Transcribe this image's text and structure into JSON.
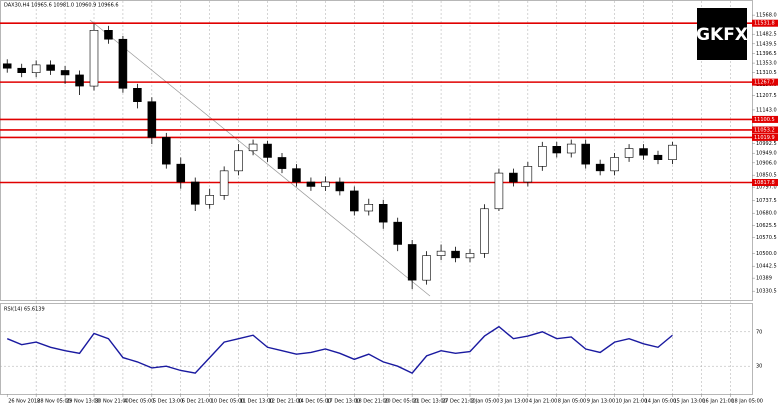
{
  "logo": "GKFX",
  "chart_data": [
    {
      "type": "candlestick",
      "title": "DAX30,H4 10965.6 10981.0 10960.9 10966.6",
      "categories": [
        "26 Nov 2018",
        null,
        "28 Nov 05:00",
        null,
        "29 Nov 13:00",
        null,
        "30 Nov 21:00",
        null,
        "4 Dec 05:00",
        null,
        "5 Dec 13:00",
        null,
        "6 Dec 21:00",
        null,
        "10 Dec 05:00",
        null,
        "11 Dec 13:00",
        null,
        "12 Dec 21:00",
        null,
        "14 Dec 05:00",
        null,
        "17 Dec 13:00",
        null,
        "18 Dec 21:00",
        null,
        "20 Dec 05:00",
        null,
        "21 Dec 13:00",
        null,
        "27 Dec 21:00",
        null,
        "2 Jan 05:00",
        null,
        "3 Jan 13:00",
        null,
        "4 Jan 21:00",
        null,
        "8 Jan 05:00",
        null,
        "9 Jan 13:00",
        null,
        "10 Jan 21:00",
        null,
        "14 Jan 05:00",
        null,
        "15 Jan 13:00",
        null,
        "16 Jan 21:00",
        null,
        "18 Jan 05:00",
        null
      ],
      "open": [
        11350,
        11330,
        11310,
        11345,
        11320,
        11300,
        11250,
        11500,
        11460,
        11240,
        11180,
        11020,
        10900,
        10820,
        10720,
        10760,
        10870,
        10960,
        10990,
        10930,
        10880,
        10820,
        10800,
        10820,
        10780,
        10690,
        10720,
        10640,
        10540,
        10380,
        10490,
        10510,
        10480,
        10500,
        10700,
        10860,
        10820,
        10890,
        10980,
        10950,
        10990,
        10900,
        10870,
        10930,
        10970,
        10940,
        10920,
        null,
        null,
        null,
        null,
        null
      ],
      "high": [
        11370,
        11350,
        11365,
        11365,
        11340,
        11320,
        11530,
        11520,
        11475,
        11260,
        11200,
        11040,
        10930,
        10840,
        10790,
        10890,
        10990,
        11010,
        11005,
        10950,
        10900,
        10840,
        10845,
        10840,
        10800,
        10745,
        10740,
        10660,
        10560,
        10510,
        10540,
        10530,
        10520,
        10720,
        10880,
        10880,
        10910,
        11000,
        11000,
        11010,
        11010,
        10920,
        10950,
        10990,
        10990,
        10960,
        11000,
        null,
        null,
        null,
        null,
        null
      ],
      "low": [
        11310,
        11290,
        11290,
        11300,
        11260,
        11210,
        11230,
        11440,
        11220,
        11150,
        10990,
        10880,
        10790,
        10690,
        10700,
        10740,
        10850,
        10940,
        10910,
        10860,
        10800,
        10780,
        10780,
        10760,
        10670,
        10670,
        10610,
        10510,
        10340,
        10360,
        10470,
        10460,
        10460,
        10480,
        10690,
        10800,
        10800,
        10870,
        10930,
        10930,
        10880,
        10850,
        10850,
        10910,
        10920,
        10900,
        10900,
        null,
        null,
        null,
        null,
        null
      ],
      "close": [
        11330,
        11310,
        11345,
        11320,
        11300,
        11250,
        11500,
        11460,
        11240,
        11180,
        11020,
        10900,
        10820,
        10720,
        10760,
        10870,
        10960,
        10990,
        10930,
        10880,
        10820,
        10800,
        10820,
        10780,
        10690,
        10720,
        10640,
        10540,
        10380,
        10490,
        10510,
        10480,
        10500,
        10700,
        10860,
        10820,
        10890,
        10980,
        10950,
        10990,
        10900,
        10870,
        10930,
        10970,
        10940,
        10920,
        10985,
        null,
        null,
        null,
        null,
        null
      ],
      "up_color": "#ffffff",
      "down_color": "#000000",
      "ylim": [
        10300,
        11600
      ],
      "yticks": [
        10330.5,
        10389.0,
        10442.5,
        {
          "value": 10500,
          "label": "10500.0"
        },
        10570.5,
        10625.5,
        {
          "value": 10680,
          "label": "10680.0"
        },
        10737.5,
        {
          "value": 10797,
          "label": "10797.0"
        },
        10850.5,
        {
          "value": 10906,
          "label": "10906.0"
        },
        {
          "value": 10949,
          "label": "10949.0"
        },
        10992.5,
        {
          "value": 11046,
          "label": "11046.0"
        },
        {
          "value": 11100,
          "label": "11100.0"
        },
        {
          "value": 11143,
          "label": "11143.0"
        },
        11207.5,
        {
          "value": 11256,
          "label": "11256.0"
        },
        11310.5,
        {
          "value": 11353,
          "label": "11353.0"
        },
        11396.5,
        11439.5,
        11482.5,
        11525.5,
        {
          "value": 11568,
          "label": "11568.0"
        }
      ],
      "levels": [
        11531.8,
        11267.7,
        11100.5,
        11053.2,
        11019.9,
        10817.8
      ],
      "level_color": "#e00000",
      "grid": true
    },
    {
      "type": "line",
      "title": "RSI(14) 65.6139",
      "values": [
        62,
        55,
        58,
        52,
        48,
        45,
        68,
        62,
        40,
        35,
        28,
        30,
        25,
        22,
        40,
        58,
        62,
        66,
        52,
        48,
        44,
        46,
        50,
        45,
        38,
        44,
        35,
        30,
        22,
        42,
        48,
        45,
        47,
        65,
        76,
        62,
        65,
        70,
        62,
        64,
        50,
        46,
        58,
        62,
        56,
        52,
        66,
        null,
        null,
        null,
        null,
        null
      ],
      "color": "#1a1aa0",
      "ylim": [
        0,
        100
      ],
      "yticks": [
        30,
        70
      ]
    }
  ]
}
